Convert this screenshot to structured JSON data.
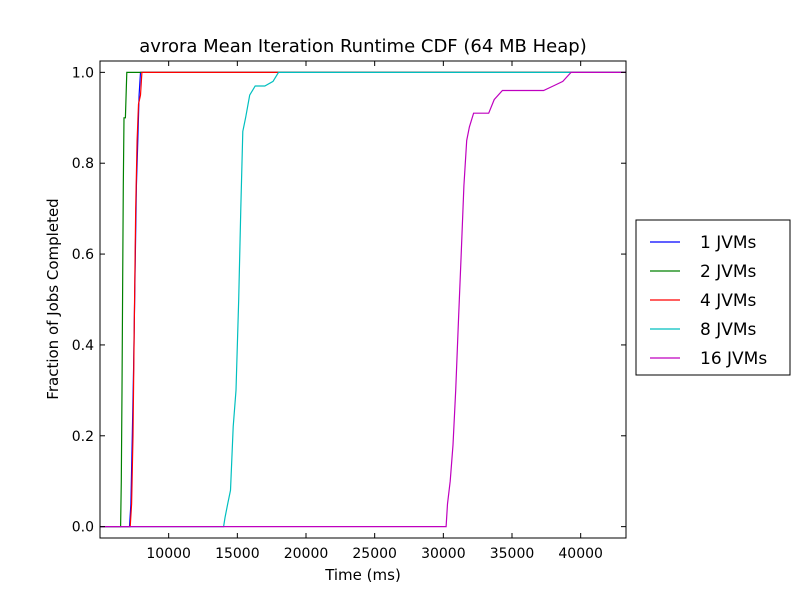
{
  "chart_data": {
    "type": "line",
    "title": "avrora Mean Iteration Runtime CDF (64 MB Heap)",
    "xlabel": "Time (ms)",
    "ylabel": "Fraction of Jobs Completed",
    "xlim": [
      5000,
      43300
    ],
    "ylim": [
      -0.025,
      1.025
    ],
    "xticks": [
      10000,
      15000,
      20000,
      25000,
      30000,
      35000,
      40000
    ],
    "xtick_labels": [
      "10000",
      "15000",
      "20000",
      "25000",
      "30000",
      "35000",
      "40000"
    ],
    "yticks": [
      0.0,
      0.2,
      0.4,
      0.6,
      0.8,
      1.0
    ],
    "ytick_labels": [
      "0.0",
      "0.2",
      "0.4",
      "0.6",
      "0.8",
      "1.0"
    ],
    "grid": false,
    "legend_position": "right",
    "series": [
      {
        "name": "1 JVMs",
        "color": "#0000ff",
        "points": [
          [
            5000,
            0
          ],
          [
            7150,
            0
          ],
          [
            7250,
            0.05
          ],
          [
            7350,
            0.2
          ],
          [
            7450,
            0.35
          ],
          [
            7550,
            0.55
          ],
          [
            7650,
            0.75
          ],
          [
            7750,
            0.85
          ],
          [
            7850,
            0.95
          ],
          [
            7950,
            1.0
          ],
          [
            43300,
            1.0
          ]
        ]
      },
      {
        "name": "2 JVMs",
        "color": "#008000",
        "points": [
          [
            5000,
            0
          ],
          [
            6500,
            0
          ],
          [
            6550,
            0.1
          ],
          [
            6600,
            0.3
          ],
          [
            6650,
            0.55
          ],
          [
            6700,
            0.75
          ],
          [
            6750,
            0.9
          ],
          [
            6850,
            0.9
          ],
          [
            6950,
            1.0
          ],
          [
            43300,
            1.0
          ]
        ]
      },
      {
        "name": "4 JVMs",
        "color": "#ff0000",
        "points": [
          [
            5000,
            0
          ],
          [
            7200,
            0
          ],
          [
            7300,
            0.05
          ],
          [
            7400,
            0.2
          ],
          [
            7500,
            0.45
          ],
          [
            7600,
            0.7
          ],
          [
            7700,
            0.85
          ],
          [
            7800,
            0.93
          ],
          [
            7950,
            0.95
          ],
          [
            8050,
            1.0
          ],
          [
            43300,
            1.0
          ]
        ]
      },
      {
        "name": "8 JVMs",
        "color": "#00bfbf",
        "points": [
          [
            5000,
            0
          ],
          [
            14000,
            0
          ],
          [
            14100,
            0.02
          ],
          [
            14300,
            0.05
          ],
          [
            14500,
            0.08
          ],
          [
            14700,
            0.22
          ],
          [
            14900,
            0.3
          ],
          [
            15100,
            0.5
          ],
          [
            15250,
            0.7
          ],
          [
            15400,
            0.87
          ],
          [
            15600,
            0.9
          ],
          [
            15900,
            0.95
          ],
          [
            16300,
            0.97
          ],
          [
            17000,
            0.97
          ],
          [
            17600,
            0.98
          ],
          [
            18000,
            1.0
          ],
          [
            43300,
            1.0
          ]
        ]
      },
      {
        "name": "16 JVMs",
        "color": "#bf00bf",
        "points": [
          [
            5000,
            0
          ],
          [
            30200,
            0
          ],
          [
            30300,
            0.05
          ],
          [
            30500,
            0.1
          ],
          [
            30700,
            0.18
          ],
          [
            30900,
            0.3
          ],
          [
            31100,
            0.45
          ],
          [
            31300,
            0.6
          ],
          [
            31500,
            0.75
          ],
          [
            31700,
            0.85
          ],
          [
            31900,
            0.88
          ],
          [
            32200,
            0.91
          ],
          [
            33300,
            0.91
          ],
          [
            33700,
            0.94
          ],
          [
            34300,
            0.96
          ],
          [
            37300,
            0.96
          ],
          [
            38000,
            0.97
          ],
          [
            38700,
            0.98
          ],
          [
            39000,
            0.99
          ],
          [
            39300,
            1.0
          ],
          [
            43300,
            1.0
          ]
        ]
      }
    ]
  }
}
